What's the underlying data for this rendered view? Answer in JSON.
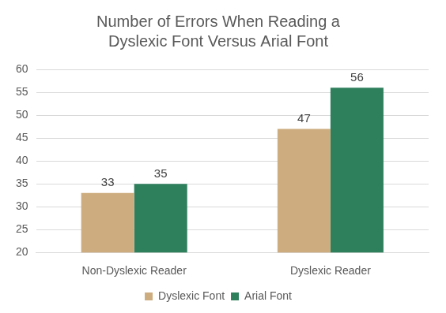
{
  "chart_data": {
    "type": "bar",
    "title": [
      "Number of Errors When Reading a",
      "Dyslexic Font Versus Arial Font"
    ],
    "categories": [
      "Non-Dyslexic Reader",
      "Dyslexic Reader"
    ],
    "series": [
      {
        "name": "Dyslexic Font",
        "color": "#cdad7f",
        "values": [
          33,
          47
        ]
      },
      {
        "name": "Arial Font",
        "color": "#2e7f5c",
        "values": [
          35,
          56
        ]
      }
    ],
    "ylim": [
      20,
      60
    ],
    "yticks": [
      20,
      25,
      30,
      35,
      40,
      45,
      50,
      55,
      60
    ],
    "grid": true,
    "legend": "bottom",
    "data_labels": true
  }
}
